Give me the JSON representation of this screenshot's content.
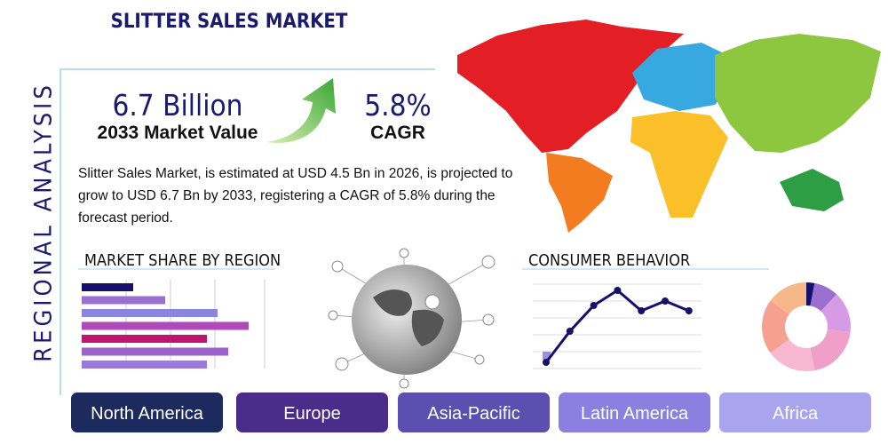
{
  "header": {
    "title": "SLITTER SALES MARKET",
    "side_title": "REGIONAL ANALYSIS"
  },
  "stats": [
    {
      "value": "6.7 Billion",
      "label": "2033 Market Value"
    },
    {
      "value": "5.8%",
      "label": "CAGR"
    }
  ],
  "description": "Slitter Sales Market, is estimated at USD 4.5 Bn in 2026, is projected to grow to USD 6.7 Bn by 2033, registering a CAGR of 5.8% during the forecast period.",
  "market_share": {
    "title": "MARKET SHARE BY REGION",
    "values": [
      58,
      94,
      153,
      188,
      141,
      165,
      141
    ]
  },
  "consumer_behavior": {
    "title": "CONSUMER BEHAVIOR",
    "values": [
      7,
      42,
      71,
      88,
      65,
      76,
      65
    ]
  },
  "donut": {
    "values": [
      3,
      9,
      15,
      20,
      18,
      20,
      15
    ]
  },
  "tabs": [
    "North America",
    "Europe",
    "Asia-Pacific",
    "Latin America",
    "Africa"
  ]
}
